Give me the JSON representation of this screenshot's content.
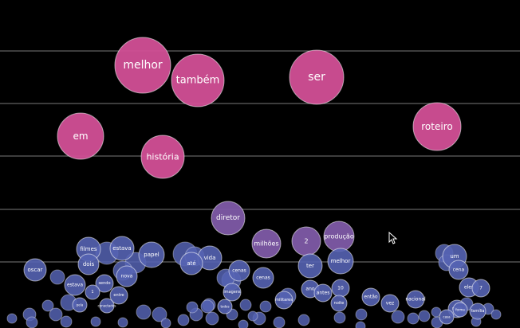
{
  "chart_data": {
    "type": "scatter",
    "title": "",
    "xlabel": "",
    "ylabel": "",
    "grid": "horizontal lines",
    "colors": {
      "high": "#d24f96",
      "mid": "#7e5aa6",
      "low": "#5563b3",
      "background": "#000000",
      "gridline": "#7a7a7a"
    },
    "series": [
      {
        "label": "melhor",
        "tier": "high"
      },
      {
        "label": "também",
        "tier": "high"
      },
      {
        "label": "ser",
        "tier": "high"
      },
      {
        "label": "em",
        "tier": "high"
      },
      {
        "label": "roteiro",
        "tier": "high"
      },
      {
        "label": "história",
        "tier": "high"
      },
      {
        "label": "diretor",
        "tier": "mid"
      },
      {
        "label": "milhões",
        "tier": "mid"
      },
      {
        "label": "2",
        "tier": "mid"
      },
      {
        "label": "produção",
        "tier": "mid"
      },
      {
        "label": "ter",
        "tier": "low"
      },
      {
        "label": "melhor",
        "tier": "low"
      },
      {
        "label": "filmes",
        "tier": "low"
      },
      {
        "label": "estava",
        "tier": "low"
      },
      {
        "label": "papel",
        "tier": "low"
      },
      {
        "label": "dois",
        "tier": "low"
      },
      {
        "label": "oscar",
        "tier": "low"
      },
      {
        "label": "vida",
        "tier": "low"
      },
      {
        "label": "até",
        "tier": "low"
      },
      {
        "label": "cenas",
        "tier": "low"
      },
      {
        "label": "cenas",
        "tier": "low"
      },
      {
        "label": "nova",
        "tier": "low"
      },
      {
        "label": "estava",
        "tier": "low"
      },
      {
        "label": "entre",
        "tier": "low"
      },
      {
        "label": "sendo",
        "tier": "low"
      },
      {
        "label": "1",
        "tier": "low"
      },
      {
        "label": "ano",
        "tier": "low"
      },
      {
        "label": "antes",
        "tier": "low"
      },
      {
        "label": "10",
        "tier": "low"
      },
      {
        "label": "então",
        "tier": "low"
      },
      {
        "label": "vez",
        "tier": "low"
      },
      {
        "label": "nacional",
        "tier": "low"
      },
      {
        "label": "um",
        "tier": "low"
      },
      {
        "label": "cena",
        "tier": "low"
      },
      {
        "label": "eles",
        "tier": "low"
      },
      {
        "label": "7",
        "tier": "low"
      },
      {
        "label": "imagens",
        "tier": "low"
      },
      {
        "label": "todos",
        "tier": "low"
      },
      {
        "label": "militares",
        "tier": "low"
      },
      {
        "label": "noite",
        "tier": "low"
      },
      {
        "label": "conectados",
        "tier": "low"
      },
      {
        "label": "pela",
        "tier": "low"
      },
      {
        "label": "mais",
        "tier": "low"
      },
      {
        "label": "casa",
        "tier": "low"
      },
      {
        "label": "forma",
        "tier": "low"
      },
      {
        "label": "família",
        "tier": "low"
      }
    ]
  },
  "icons": {
    "cursor": "mouse-pointer-icon"
  }
}
